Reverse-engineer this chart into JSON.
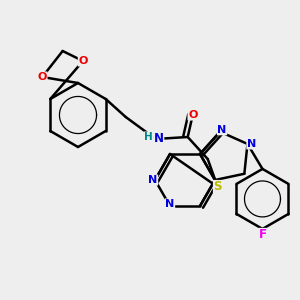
{
  "bg_color": "#eeeeee",
  "bond_color": "#000000",
  "bond_width": 1.8,
  "atom_colors": {
    "N": "#0000dd",
    "O": "#ee0000",
    "S": "#bbbb00",
    "F": "#ee00ee",
    "C": "#000000",
    "H": "#008888"
  },
  "fig_w": 3.0,
  "fig_h": 3.0,
  "dpi": 100
}
